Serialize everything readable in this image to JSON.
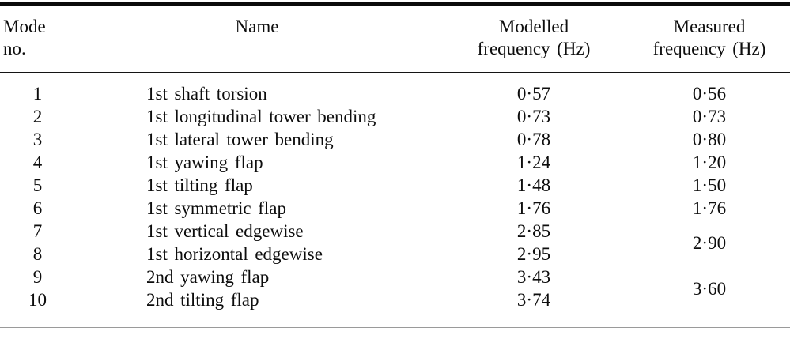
{
  "table": {
    "header": {
      "mode": "Mode no.",
      "name": "Name",
      "modelled": "Modelled\nfrequency (Hz)",
      "measured": "Measured\nfrequency (Hz)"
    },
    "rows": [
      {
        "mode": "1",
        "name": "1st shaft torsion",
        "modelled": "0·57",
        "measured": "0·56"
      },
      {
        "mode": "2",
        "name": "1st longitudinal tower bending",
        "modelled": "0·73",
        "measured": "0·73"
      },
      {
        "mode": "3",
        "name": "1st lateral tower bending",
        "modelled": "0·78",
        "measured": "0·80"
      },
      {
        "mode": "4",
        "name": "1st yawing flap",
        "modelled": "1·24",
        "measured": "1·20"
      },
      {
        "mode": "5",
        "name": "1st tilting flap",
        "modelled": "1·48",
        "measured": "1·50"
      },
      {
        "mode": "6",
        "name": "1st symmetric flap",
        "modelled": "1·76",
        "measured": "1·76"
      },
      {
        "mode": "7",
        "name": "1st vertical edgewise",
        "modelled": "2·85",
        "measured": "2·90",
        "measured_rowspan": 2
      },
      {
        "mode": "8",
        "name": "1st horizontal edgewise",
        "modelled": "2·95"
      },
      {
        "mode": "9",
        "name": "2nd yawing flap",
        "modelled": "3·43",
        "measured": "3·60",
        "measured_rowspan": 2
      },
      {
        "mode": "10",
        "name": "2nd tilting flap",
        "modelled": "3·74"
      }
    ]
  }
}
